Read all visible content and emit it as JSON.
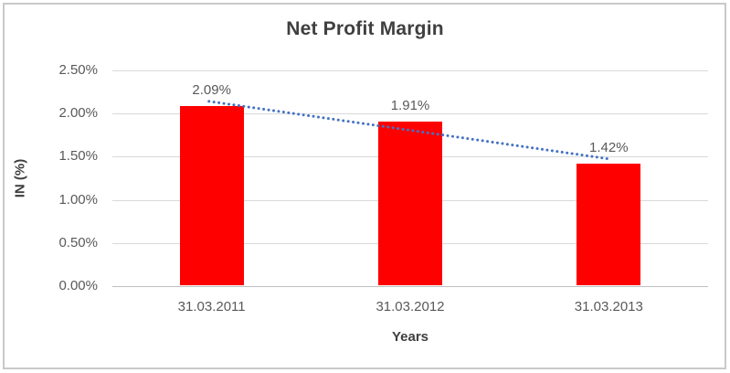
{
  "chart_data": {
    "type": "bar",
    "title": "Net Profit Margin",
    "xlabel": "Years",
    "ylabel": "IN (%)",
    "categories": [
      "31.03.2011",
      "31.03.2012",
      "31.03.2013"
    ],
    "values": [
      2.09,
      1.91,
      1.42
    ],
    "data_labels": [
      "2.09%",
      "1.91%",
      "1.42%"
    ],
    "y_ticks": [
      {
        "value": 0.0,
        "label": "0.00%"
      },
      {
        "value": 0.5,
        "label": "0.50%"
      },
      {
        "value": 1.0,
        "label": "1.00%"
      },
      {
        "value": 1.5,
        "label": "1.50%"
      },
      {
        "value": 2.0,
        "label": "2.00%"
      },
      {
        "value": 2.5,
        "label": "2.50%"
      }
    ],
    "ylim": [
      0,
      2.5
    ],
    "grid": true,
    "legend": "none",
    "bar_color": "#ff0000",
    "trendline": {
      "type": "linear",
      "style": "dotted",
      "color": "#4472c4"
    },
    "colors": {
      "title_text": "#3f3f3f",
      "tick_text": "#595959",
      "gridline": "#d9d9d9",
      "axis_line": "#bfbfbf",
      "border": "#c9c9c9"
    }
  }
}
